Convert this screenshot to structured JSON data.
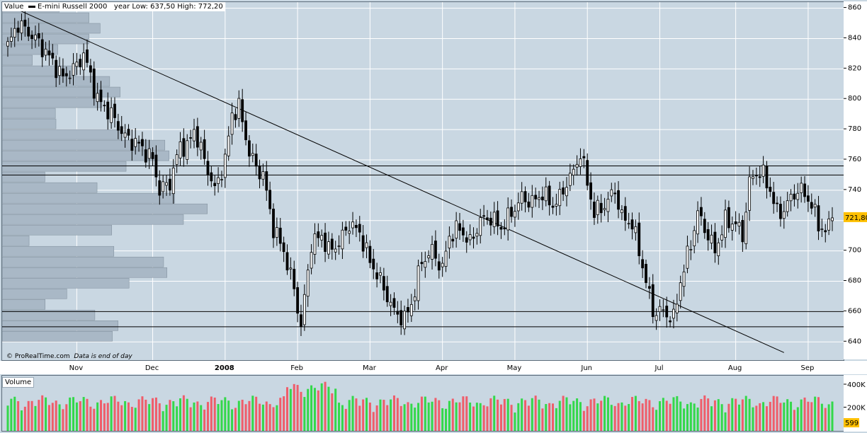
{
  "header": {
    "value_label": "Value",
    "instrument": "E-mini Russell 2000",
    "range_text": "year Low: 637,50 High: 772,20"
  },
  "watermark": {
    "brand": "© ProRealTime.com",
    "note": "Data is end of day"
  },
  "volume_panel": {
    "label": "Volume",
    "last_value": "599"
  },
  "colors": {
    "background": "#c9d7e2",
    "up": "#ffffff",
    "down": "#000000",
    "vol_up": "#33d84a",
    "vol_down": "#ef5d6a",
    "last_price_badge": "#ffc000"
  },
  "chart_data": [
    {
      "type": "candlestick",
      "title": "E-mini Russell 2000",
      "y_ticks": [
        640,
        660,
        680,
        700,
        720,
        740,
        760,
        780,
        800,
        820,
        840,
        860
      ],
      "ylim": [
        628,
        864
      ],
      "x_labels": [
        "Nov",
        "Dec",
        "2008",
        "Feb",
        "Mar",
        "Apr",
        "May",
        "Jun",
        "Jul",
        "Aug",
        "Sep"
      ],
      "last_price": "721,80",
      "year_low": 637.5,
      "year_high": 772.2,
      "horizontal_lines": [
        756,
        750,
        660,
        650
      ],
      "trendline": {
        "from_index": 0,
        "from_price": 862,
        "to_index": 225,
        "to_price": 633
      },
      "close_path": [
        [
          0,
          835
        ],
        [
          3,
          850
        ],
        [
          8,
          840
        ],
        [
          12,
          828
        ],
        [
          16,
          814
        ],
        [
          20,
          822
        ],
        [
          22,
          830
        ],
        [
          26,
          800
        ],
        [
          30,
          790
        ],
        [
          34,
          775
        ],
        [
          38,
          770
        ],
        [
          42,
          760
        ],
        [
          44,
          740
        ],
        [
          47,
          745
        ],
        [
          50,
          770
        ],
        [
          52,
          768
        ],
        [
          54,
          780
        ],
        [
          57,
          760
        ],
        [
          60,
          740
        ],
        [
          63,
          760
        ],
        [
          65,
          790
        ],
        [
          67,
          795
        ],
        [
          70,
          765
        ],
        [
          72,
          755
        ],
        [
          74,
          750
        ],
        [
          77,
          715
        ],
        [
          80,
          700
        ],
        [
          83,
          675
        ],
        [
          85,
          650
        ],
        [
          88,
          705
        ],
        [
          91,
          710
        ],
        [
          93,
          700
        ],
        [
          96,
          705
        ],
        [
          99,
          718
        ],
        [
          102,
          712
        ],
        [
          105,
          693
        ],
        [
          107,
          685
        ],
        [
          109,
          675
        ],
        [
          112,
          660
        ],
        [
          115,
          655
        ],
        [
          117,
          665
        ],
        [
          120,
          693
        ],
        [
          123,
          700
        ],
        [
          126,
          688
        ],
        [
          128,
          710
        ],
        [
          131,
          715
        ],
        [
          134,
          705
        ],
        [
          137,
          720
        ],
        [
          140,
          722
        ],
        [
          143,
          715
        ],
        [
          146,
          725
        ],
        [
          149,
          735
        ],
        [
          152,
          732
        ],
        [
          155,
          738
        ],
        [
          158,
          730
        ],
        [
          160,
          735
        ],
        [
          162,
          745
        ],
        [
          164,
          752
        ],
        [
          166,
          765
        ],
        [
          168,
          745
        ],
        [
          170,
          725
        ],
        [
          173,
          730
        ],
        [
          176,
          740
        ],
        [
          178,
          722
        ],
        [
          181,
          718
        ],
        [
          183,
          700
        ],
        [
          185,
          680
        ],
        [
          187,
          660
        ],
        [
          190,
          660
        ],
        [
          193,
          655
        ],
        [
          195,
          680
        ],
        [
          198,
          705
        ],
        [
          200,
          725
        ],
        [
          203,
          710
        ],
        [
          205,
          700
        ],
        [
          208,
          720
        ],
        [
          211,
          718
        ],
        [
          213,
          710
        ],
        [
          215,
          745
        ],
        [
          217,
          752
        ],
        [
          219,
          750
        ],
        [
          221,
          740
        ],
        [
          223,
          725
        ],
        [
          225,
          727
        ],
        [
          227,
          735
        ],
        [
          229,
          740
        ],
        [
          231,
          738
        ],
        [
          233,
          730
        ],
        [
          235,
          718
        ],
        [
          237,
          712
        ],
        [
          239,
          721.8
        ]
      ],
      "volume": {
        "y_ticks": [
          "400K",
          "200K"
        ],
        "ylim": [
          0,
          480000
        ],
        "profile_bars": 32
      }
    }
  ]
}
